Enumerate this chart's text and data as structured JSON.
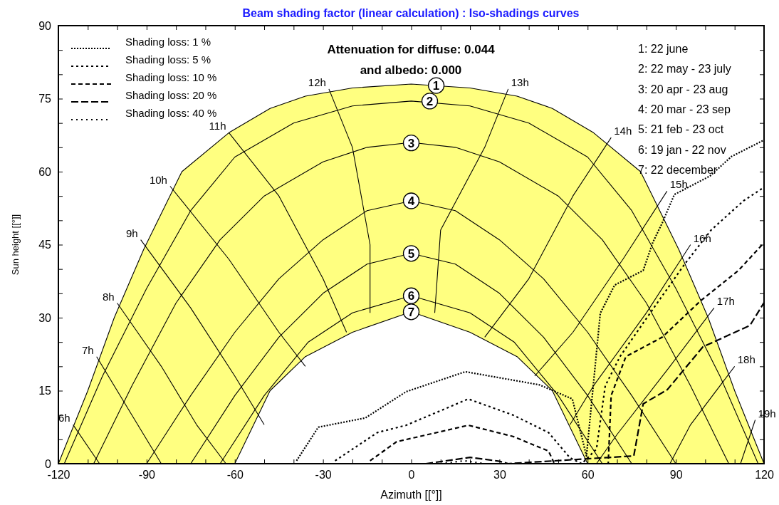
{
  "chart_data": {
    "type": "line",
    "title": "Beam shading factor (linear calculation) : Iso-shadings curves",
    "xlabel": "Azimuth [[°]]",
    "ylabel": "Sun height [[°]]",
    "xlim": [
      -120,
      120
    ],
    "ylim": [
      0,
      90
    ],
    "xticks": [
      -120,
      {
        "value": -110,
        "label": null
      },
      {
        "value": -100,
        "label": null
      },
      -90,
      {
        "value": -80,
        "label": null
      },
      {
        "value": -70,
        "label": null
      },
      -60,
      {
        "value": -50,
        "label": null
      },
      {
        "value": -40,
        "label": null
      },
      -30,
      {
        "value": -20,
        "label": null
      },
      {
        "value": -10,
        "label": null
      },
      0,
      {
        "value": 10,
        "label": null
      },
      {
        "value": 20,
        "label": null
      },
      30,
      {
        "value": 40,
        "label": null
      },
      {
        "value": 50,
        "label": null
      },
      60,
      {
        "value": 70,
        "label": null
      },
      {
        "value": 80,
        "label": null
      },
      90,
      {
        "value": 100,
        "label": null
      },
      {
        "value": 110,
        "label": null
      },
      120
    ],
    "yticks": [
      0,
      {
        "value": 5,
        "label": null
      },
      {
        "value": 10,
        "label": null
      },
      15,
      {
        "value": 20,
        "label": null
      },
      {
        "value": 25,
        "label": null
      },
      30,
      {
        "value": 35,
        "label": null
      },
      {
        "value": 40,
        "label": null
      },
      45,
      {
        "value": 50,
        "label": null
      },
      {
        "value": 55,
        "label": null
      },
      60,
      {
        "value": 65,
        "label": null
      },
      {
        "value": 70,
        "label": null
      },
      75,
      {
        "value": 80,
        "label": null
      },
      {
        "value": 85,
        "label": null
      },
      90
    ],
    "grid": false,
    "legend": "top left",
    "series": [
      {
        "type": "area",
        "color": "#ffff80",
        "x": [
          -120,
          -110,
          -101,
          -91,
          -78,
          -62,
          -48,
          -36,
          -20,
          0,
          20,
          36,
          48,
          62,
          78,
          91,
          101,
          110,
          120
        ],
        "values": [
          0,
          15,
          30,
          44,
          60,
          68,
          73,
          75.5,
          77.2,
          78,
          77.2,
          75.5,
          73,
          68,
          60,
          44,
          30,
          15,
          0
        ]
      },
      {
        "type": "area",
        "color": "#ffffff",
        "x": [
          -60,
          -48,
          -36,
          -20,
          0,
          20,
          36,
          48,
          60
        ],
        "values": [
          0,
          15,
          22,
          27,
          31.2,
          27,
          22,
          15,
          0
        ]
      },
      {
        "color": "#000000",
        "x": [
          -118,
          -105,
          -90,
          -75,
          -60,
          -40,
          -20,
          0,
          20,
          40,
          60,
          75,
          90,
          105,
          118
        ],
        "values": [
          0,
          18,
          36,
          52,
          63,
          70,
          73.5,
          74.5,
          73.5,
          70,
          63,
          52,
          36,
          18,
          0
        ]
      },
      {
        "color": "#000000",
        "x": [
          -108,
          -95,
          -80,
          -65,
          -50,
          -30,
          -15,
          0,
          15,
          30,
          50,
          65,
          80,
          95,
          108
        ],
        "values": [
          0,
          16,
          33,
          46,
          55,
          62,
          65,
          66,
          65,
          62,
          55,
          46,
          33,
          16,
          0
        ]
      },
      {
        "color": "#000000",
        "x": [
          -90,
          -75,
          -60,
          -45,
          -30,
          -15,
          0,
          15,
          30,
          45,
          60,
          75,
          90
        ],
        "values": [
          0,
          14,
          27,
          38,
          46,
          52,
          54,
          52,
          46,
          38,
          27,
          14,
          0
        ]
      },
      {
        "color": "#000000",
        "x": [
          -75,
          -60,
          -45,
          -30,
          -15,
          0,
          15,
          30,
          45,
          60,
          75
        ],
        "values": [
          0,
          14,
          26,
          35,
          41,
          43.2,
          41,
          35,
          26,
          14,
          0
        ]
      },
      {
        "color": "#000000",
        "x": [
          -65,
          -50,
          -35,
          -20,
          0,
          20,
          35,
          50,
          65
        ],
        "values": [
          0,
          14,
          25,
          31,
          34.5,
          31,
          25,
          14,
          0
        ]
      },
      {
        "name": "6h",
        "color": "#000000",
        "x": [
          -115,
          -106
        ],
        "values": [
          8,
          0
        ]
      },
      {
        "name": "7h",
        "color": "#000000",
        "x": [
          -107,
          -95,
          -85
        ],
        "values": [
          22,
          10,
          0
        ]
      },
      {
        "name": "8h",
        "color": "#000000",
        "x": [
          -100,
          -85,
          -73,
          -63
        ],
        "values": [
          33,
          20,
          8,
          0
        ]
      },
      {
        "name": "9h",
        "color": "#000000",
        "x": [
          -92,
          -75,
          -60,
          -50
        ],
        "values": [
          46,
          32,
          18,
          8
        ]
      },
      {
        "name": "10h",
        "color": "#000000",
        "x": [
          -82,
          -62,
          -45,
          -36
        ],
        "values": [
          57,
          42,
          27,
          20
        ]
      },
      {
        "name": "11h",
        "color": "#000000",
        "x": [
          -62,
          -45,
          -30,
          -22
        ],
        "values": [
          68,
          55,
          38,
          27
        ]
      },
      {
        "name": "12h",
        "color": "#000000",
        "x": [
          -28,
          -20,
          -14,
          -14
        ],
        "values": [
          77,
          65,
          45,
          31
        ]
      },
      {
        "name": "13h",
        "color": "#000000",
        "x": [
          33,
          25,
          10,
          8
        ],
        "values": [
          77,
          65,
          48,
          31
        ]
      },
      {
        "name": "14h",
        "color": "#000000",
        "x": [
          68,
          55,
          40,
          25
        ],
        "values": [
          67,
          55,
          38,
          26
        ]
      },
      {
        "name": "15h",
        "color": "#000000",
        "x": [
          87,
          72,
          55,
          42
        ],
        "values": [
          56,
          42,
          27,
          18
        ]
      },
      {
        "name": "16h",
        "color": "#000000",
        "x": [
          95,
          80,
          62,
          54
        ],
        "values": [
          45,
          31,
          16,
          8
        ]
      },
      {
        "name": "17h",
        "color": "#000000",
        "x": [
          103,
          88,
          70,
          63
        ],
        "values": [
          32,
          20,
          6,
          0
        ]
      },
      {
        "name": "18h",
        "color": "#000000",
        "x": [
          110,
          95,
          88
        ],
        "values": [
          20,
          8,
          0
        ]
      },
      {
        "name": "19h",
        "color": "#000000",
        "x": [
          117,
          112
        ],
        "values": [
          9,
          0
        ]
      },
      {
        "name": "Shading loss: 1 %",
        "color": "#000000",
        "line_style": "dotted",
        "x": [
          -39,
          -31.6,
          -15.6,
          -1.7,
          18.4,
          43.6,
          54.8,
          59.6,
          64.3,
          69.2,
          78.9,
          82.2,
          85.4,
          89.5,
          101.6,
          108.9,
          120
        ],
        "values": [
          0.6,
          7.5,
          9.4,
          14.8,
          18.9,
          16.2,
          13.3,
          1.6,
          30.9,
          36.7,
          39.7,
          45.5,
          49.5,
          55.3,
          59.1,
          63.1,
          66.5
        ]
      },
      {
        "name": "Shading loss: 5 %",
        "color": "#000000",
        "line_style": "dashed",
        "x": [
          -25.9,
          -11.5,
          -1.7,
          19.4,
          34.6,
          46.7,
          54,
          58,
          63,
          66,
          71,
          79,
          93,
          102,
          113,
          120
        ],
        "values": [
          0.6,
          6.4,
          7.9,
          13.3,
          10,
          6.4,
          1.2,
          0,
          3,
          16,
          22,
          29,
          41,
          48,
          54,
          56.8
        ]
      },
      {
        "name": "Shading loss: 10 %",
        "color": "#000000",
        "line_style": "dashed",
        "x": [
          -14,
          -5,
          19.4,
          34.6,
          46.7,
          48.7,
          67,
          68,
          73,
          85.4,
          98.3,
          111.3,
          120
        ],
        "values": [
          0.6,
          4.5,
          7.9,
          5.6,
          2.6,
          0,
          0,
          14,
          22,
          26,
          33.4,
          39.7,
          45.4
        ]
      },
      {
        "name": "Shading loss: 20 %",
        "color": "#000000",
        "line_style": "dashed",
        "x": [
          5,
          20,
          30,
          33,
          75.7,
          78.9,
          87.1,
          99.2,
          115.2,
          120
        ],
        "values": [
          0,
          1.3,
          0.5,
          0,
          1.6,
          12.3,
          15.2,
          24,
          28.4,
          33.1
        ]
      },
      {
        "name": "Shading loss: 40 %",
        "color": "#000000",
        "line_style": "dotted",
        "x": [
          10,
          18,
          25
        ],
        "values": [
          0,
          0.6,
          0
        ]
      }
    ],
    "annotations": [
      "Attenuation for diffuse: 0.044",
      "and albedo: 0.000",
      "1: 22 june",
      "2: 22 may - 23 july",
      "3: 20 apr - 23 aug",
      "4: 20 mar - 23 sep",
      "5: 21 feb - 23 oct",
      "6: 19 jan - 22 nov",
      "7: 22 december",
      {
        "text": "1",
        "x": 8.5,
        "y": 77.7
      },
      {
        "text": "2",
        "x": 6.3,
        "y": 74.5
      },
      {
        "text": "3",
        "x": 0,
        "y": 65.9
      },
      {
        "text": "4",
        "x": 0,
        "y": 54
      },
      {
        "text": "5",
        "x": 0,
        "y": 43.2
      },
      {
        "text": "6",
        "x": 0,
        "y": 34.5
      },
      {
        "text": "7",
        "x": 0,
        "y": 31.2
      }
    ]
  }
}
